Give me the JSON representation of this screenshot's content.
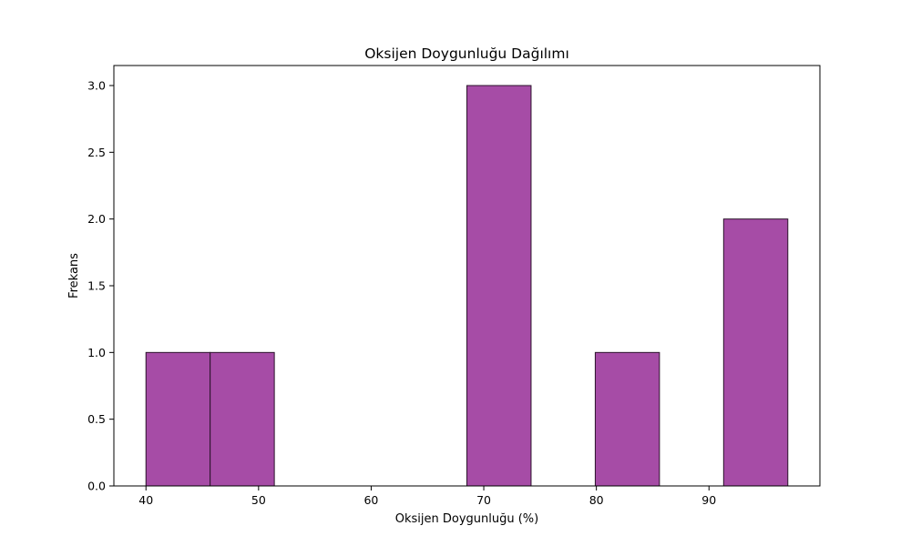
{
  "chart_data": {
    "type": "bar",
    "title": "Oksijen Doygunluğu Dağılımı",
    "xlabel": "Oksijen Doygunluğu (%)",
    "ylabel": "Frekans",
    "bins": [
      {
        "x0": 40.0,
        "x1": 45.7,
        "count": 1
      },
      {
        "x0": 45.7,
        "x1": 51.4,
        "count": 1
      },
      {
        "x0": 51.4,
        "x1": 57.1,
        "count": 0
      },
      {
        "x0": 57.1,
        "x1": 62.8,
        "count": 0
      },
      {
        "x0": 62.8,
        "x1": 68.5,
        "count": 0
      },
      {
        "x0": 68.5,
        "x1": 74.2,
        "count": 3
      },
      {
        "x0": 74.2,
        "x1": 79.9,
        "count": 0
      },
      {
        "x0": 79.9,
        "x1": 85.6,
        "count": 1
      },
      {
        "x0": 85.6,
        "x1": 91.3,
        "count": 0
      },
      {
        "x0": 91.3,
        "x1": 97.0,
        "count": 2
      }
    ],
    "xlim": [
      37.15,
      99.85
    ],
    "ylim": [
      0,
      3.15
    ],
    "xticks": [
      {
        "value": 40,
        "label": "40"
      },
      {
        "value": 50,
        "label": "50"
      },
      {
        "value": 60,
        "label": "60"
      },
      {
        "value": 70,
        "label": "70"
      },
      {
        "value": 80,
        "label": "80"
      },
      {
        "value": 90,
        "label": "90"
      }
    ],
    "yticks": [
      {
        "value": 0.0,
        "label": "0.0"
      },
      {
        "value": 0.5,
        "label": "0.5"
      },
      {
        "value": 1.0,
        "label": "1.0"
      },
      {
        "value": 1.5,
        "label": "1.5"
      },
      {
        "value": 2.0,
        "label": "2.0"
      },
      {
        "value": 2.5,
        "label": "2.5"
      },
      {
        "value": 3.0,
        "label": "3.0"
      }
    ],
    "bar_color": "#a64ca6",
    "edge_color": "#2b132b",
    "grid": false,
    "legend": "none"
  }
}
